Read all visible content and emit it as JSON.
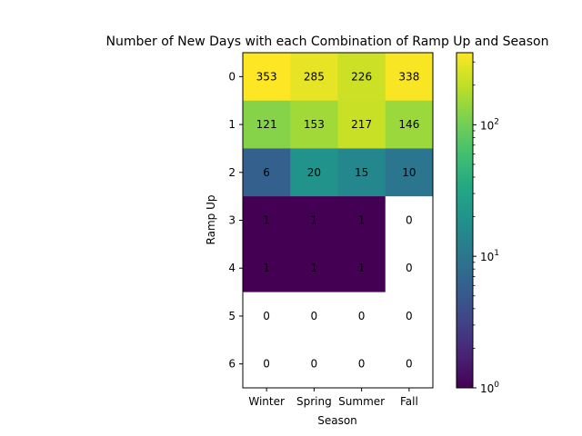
{
  "chart_data": {
    "type": "heatmap",
    "title": "Number of New Days with each Combination of Ramp Up and Season",
    "xlabel": "Season",
    "ylabel": "Ramp Up",
    "categories": [
      "Winter",
      "Spring",
      "Summer",
      "Fall"
    ],
    "rows": [
      "0",
      "1",
      "2",
      "3",
      "4",
      "5",
      "6"
    ],
    "values": [
      [
        353,
        285,
        226,
        338
      ],
      [
        121,
        153,
        217,
        146
      ],
      [
        6,
        20,
        15,
        10
      ],
      [
        1,
        1,
        1,
        0
      ],
      [
        1,
        1,
        1,
        0
      ],
      [
        0,
        0,
        0,
        0
      ],
      [
        0,
        0,
        0,
        0
      ]
    ],
    "colorbar": {
      "scale": "log",
      "colormap": "viridis",
      "vmin": 1,
      "vmax": 353,
      "ticks": [
        {
          "base": "10",
          "exp": "0",
          "value": 1
        },
        {
          "base": "10",
          "exp": "1",
          "value": 10
        },
        {
          "base": "10",
          "exp": "2",
          "value": 100
        }
      ]
    },
    "zero_color": "#ffffff"
  }
}
